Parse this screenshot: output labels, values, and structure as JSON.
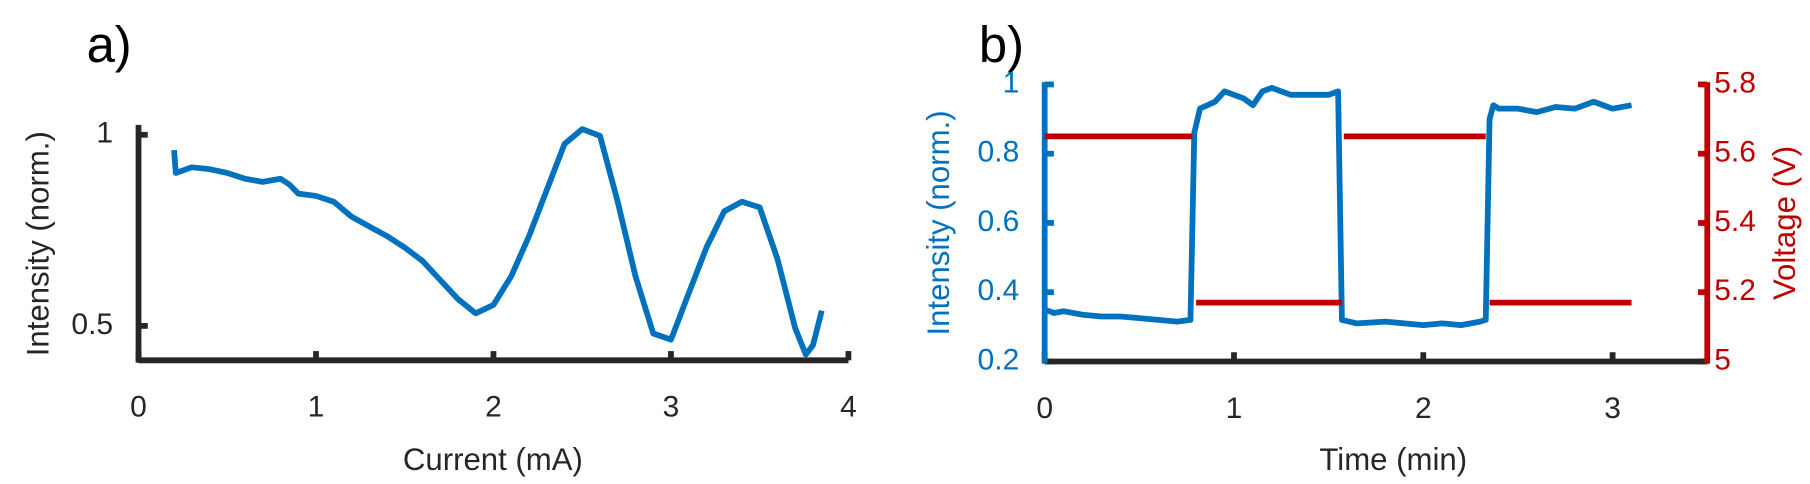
{
  "chart_data": [
    {
      "type": "line",
      "panel": "a)",
      "xlabel": "Current (mA)",
      "ylabel": "Intensity (norm.)",
      "xlim": [
        0,
        4
      ],
      "xticks": [
        0,
        1,
        2,
        3,
        4
      ],
      "ylim": [
        0.41,
        1.02
      ],
      "yticks": [
        0.5,
        1
      ],
      "axis_color": "#262626",
      "series": [
        {
          "name": "Intensity",
          "color": "#0072bd",
          "x": [
            0.2,
            0.21,
            0.3,
            0.4,
            0.5,
            0.6,
            0.7,
            0.8,
            0.85,
            0.9,
            1.0,
            1.1,
            1.2,
            1.3,
            1.4,
            1.5,
            1.6,
            1.7,
            1.8,
            1.9,
            2.0,
            2.1,
            2.2,
            2.3,
            2.4,
            2.5,
            2.6,
            2.7,
            2.8,
            2.9,
            3.0,
            3.1,
            3.2,
            3.3,
            3.4,
            3.5,
            3.6,
            3.7,
            3.76,
            3.8,
            3.85
          ],
          "values": [
            0.96,
            0.9,
            0.915,
            0.91,
            0.9,
            0.885,
            0.877,
            0.885,
            0.87,
            0.846,
            0.84,
            0.825,
            0.786,
            0.76,
            0.735,
            0.705,
            0.67,
            0.62,
            0.57,
            0.533,
            0.555,
            0.63,
            0.735,
            0.855,
            0.976,
            1.015,
            0.997,
            0.825,
            0.63,
            0.48,
            0.464,
            0.585,
            0.705,
            0.8,
            0.825,
            0.81,
            0.675,
            0.494,
            0.425,
            0.45,
            0.54
          ]
        }
      ]
    },
    {
      "type": "line",
      "panel": "b)",
      "xlabel": "Time (min)",
      "ylabel": "Intensity (norm.)",
      "y2label": "Voltage (V)",
      "xlim": [
        0,
        3.5
      ],
      "xticks": [
        0,
        1,
        2,
        3
      ],
      "ylim": [
        0.2,
        1
      ],
      "yticks": [
        0.2,
        0.4,
        0.6,
        0.8,
        1
      ],
      "y2lim": [
        5,
        5.8
      ],
      "y2ticks": [
        5,
        5.2,
        5.4,
        5.6,
        5.8
      ],
      "axis_color": "#262626",
      "y_color": "#0072bd",
      "y2_color": "#c00000",
      "series": [
        {
          "name": "Intensity",
          "color": "#0072bd",
          "x": [
            0,
            0.05,
            0.1,
            0.2,
            0.3,
            0.4,
            0.5,
            0.6,
            0.7,
            0.77,
            0.79,
            0.82,
            0.9,
            0.95,
            1.05,
            1.1,
            1.15,
            1.2,
            1.3,
            1.4,
            1.5,
            1.55,
            1.57,
            1.65,
            1.8,
            1.9,
            2.0,
            2.1,
            2.2,
            2.3,
            2.33,
            2.35,
            2.37,
            2.4,
            2.5,
            2.6,
            2.7,
            2.8,
            2.9,
            3.0,
            3.1
          ],
          "values": [
            0.35,
            0.34,
            0.345,
            0.335,
            0.33,
            0.33,
            0.325,
            0.32,
            0.315,
            0.32,
            0.86,
            0.93,
            0.95,
            0.98,
            0.96,
            0.94,
            0.98,
            0.99,
            0.97,
            0.97,
            0.97,
            0.98,
            0.32,
            0.31,
            0.315,
            0.31,
            0.305,
            0.31,
            0.305,
            0.315,
            0.32,
            0.9,
            0.94,
            0.93,
            0.93,
            0.92,
            0.935,
            0.93,
            0.95,
            0.93,
            0.94
          ]
        },
        {
          "name": "Voltage",
          "color": "#c00000",
          "axis": "y2",
          "x": [
            0,
            0.78,
            0.79,
            0.8,
            1.57,
            1.575,
            1.58,
            2.33,
            2.34,
            2.35,
            3.1
          ],
          "values": [
            5.65,
            5.65,
            null,
            5.17,
            5.17,
            null,
            5.65,
            5.65,
            null,
            5.17,
            5.17
          ]
        }
      ]
    }
  ]
}
